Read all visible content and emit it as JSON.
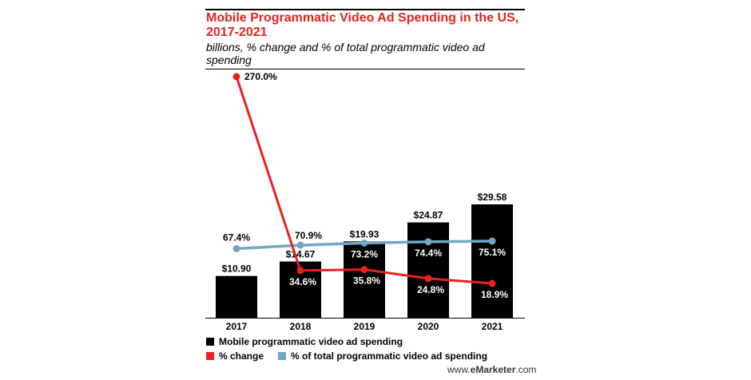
{
  "title": "Mobile Programmatic Video Ad Spending in the US, 2017-2021",
  "subtitle": "billions, % change and % of total programmatic video ad spending",
  "source": {
    "prefix": "www.",
    "brand": "eMarketer",
    "suffix": ".com"
  },
  "colors": {
    "bar": "#000000",
    "change": "#e8211c",
    "share": "#6fa8c6"
  },
  "chart_data": {
    "type": "bar",
    "categories": [
      "2017",
      "2018",
      "2019",
      "2020",
      "2021"
    ],
    "series": [
      {
        "name": "Mobile programmatic video ad spending",
        "type": "bar",
        "values": [
          10.9,
          14.67,
          19.93,
          24.87,
          29.58
        ],
        "labels": [
          "$10.90",
          "$14.67",
          "$19.93",
          "$24.87",
          "$29.58"
        ]
      },
      {
        "name": "% change",
        "type": "line",
        "values": [
          270.0,
          34.6,
          35.8,
          24.8,
          18.9
        ],
        "labels": [
          "270.0%",
          "34.6%",
          "35.8%",
          "24.8%",
          "18.9%"
        ]
      },
      {
        "name": "% of total programmatic video ad spending",
        "type": "line",
        "values": [
          67.4,
          70.9,
          73.2,
          74.4,
          75.1
        ],
        "labels": [
          "67.4%",
          "70.9%",
          "73.2%",
          "74.4%",
          "75.1%"
        ]
      }
    ],
    "legend": [
      {
        "name": "Mobile programmatic video ad spending",
        "color": "#000000"
      },
      {
        "name": "% change",
        "color": "#e8211c"
      },
      {
        "name": "% of total programmatic video ad spending",
        "color": "#6fa8c6"
      }
    ],
    "grid": false,
    "legend_position": "bottom"
  }
}
